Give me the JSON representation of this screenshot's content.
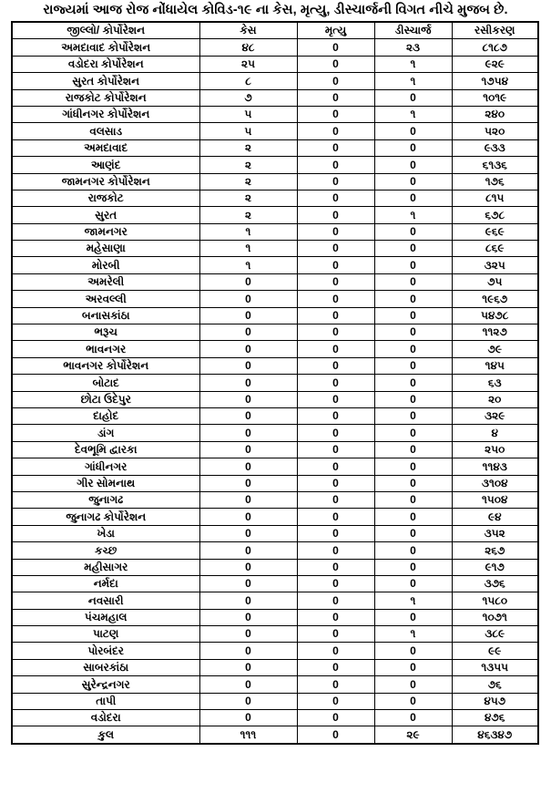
{
  "colors": {
    "text": "#000000",
    "background": "#ffffff",
    "border": "#000000"
  },
  "title": "રાજ્યમાં આજ રોજ નોંધાયેલ કોવિડ-૧૯ ના કેસ, મૃત્યુ, ડીસ્ચાર્જની વિગત નીચે મુજબ છે.",
  "table": {
    "headers": [
      "જીલ્લો/ કોર્પોરેશન",
      "કેસ",
      "મૃત્યુ",
      "ડીસ્ચાર્જ",
      "રસીકરણ"
    ],
    "rows": [
      {
        "name": "અમદાવાદ કોર્પોરેશન",
        "cases": "૪૮",
        "deaths": "0",
        "discharge": "૨૩",
        "vaccination": "૮૧૮૭"
      },
      {
        "name": "વડોદરા કોર્પોરેશન",
        "cases": "૨૫",
        "deaths": "0",
        "discharge": "૧",
        "vaccination": "૯૨૯"
      },
      {
        "name": "સુરત કોર્પોરેશન",
        "cases": "૮",
        "deaths": "0",
        "discharge": "૧",
        "vaccination": "૧૭૫૪"
      },
      {
        "name": "રાજકોટ કોર્પોરેશન",
        "cases": "૭",
        "deaths": "0",
        "discharge": "0",
        "vaccination": "૧૦૧૯"
      },
      {
        "name": "ગાંધીનગર કોર્પોરેશન",
        "cases": "૫",
        "deaths": "0",
        "discharge": "૧",
        "vaccination": "૨૪૦"
      },
      {
        "name": "વલસાડ",
        "cases": "૫",
        "deaths": "0",
        "discharge": "0",
        "vaccination": "૫૨૦"
      },
      {
        "name": "અમદાવાદ",
        "cases": "૨",
        "deaths": "0",
        "discharge": "0",
        "vaccination": "૯૩૩"
      },
      {
        "name": "આણંદ",
        "cases": "૨",
        "deaths": "0",
        "discharge": "0",
        "vaccination": "૬૧૩૬"
      },
      {
        "name": "જામનગર કોર્પોરેશન",
        "cases": "૨",
        "deaths": "0",
        "discharge": "0",
        "vaccination": "૧૭૬"
      },
      {
        "name": "રાજકોટ",
        "cases": "૨",
        "deaths": "0",
        "discharge": "0",
        "vaccination": "૮૧૫"
      },
      {
        "name": "સુરત",
        "cases": "૨",
        "deaths": "0",
        "discharge": "૧",
        "vaccination": "૬૭૮"
      },
      {
        "name": "જામનગર",
        "cases": "૧",
        "deaths": "0",
        "discharge": "0",
        "vaccination": "૯૬૯"
      },
      {
        "name": "મહેસાણા",
        "cases": "૧",
        "deaths": "0",
        "discharge": "0",
        "vaccination": "૮૬૯"
      },
      {
        "name": "મોરબી",
        "cases": "૧",
        "deaths": "0",
        "discharge": "0",
        "vaccination": "૩૨૫"
      },
      {
        "name": "અમરેલી",
        "cases": "0",
        "deaths": "0",
        "discharge": "0",
        "vaccination": "૭૫"
      },
      {
        "name": "અરવલ્લી",
        "cases": "0",
        "deaths": "0",
        "discharge": "0",
        "vaccination": "૧૯૬૭"
      },
      {
        "name": "બનાસકાંઠા",
        "cases": "0",
        "deaths": "0",
        "discharge": "0",
        "vaccination": "૫૪૭૮"
      },
      {
        "name": "ભરૂચ",
        "cases": "0",
        "deaths": "0",
        "discharge": "0",
        "vaccination": "૧૧૨૭"
      },
      {
        "name": "ભાવનગર",
        "cases": "0",
        "deaths": "0",
        "discharge": "0",
        "vaccination": "૭૯"
      },
      {
        "name": "ભાવનગર કોર્પોરેશન",
        "cases": "0",
        "deaths": "0",
        "discharge": "0",
        "vaccination": "૧૪૫"
      },
      {
        "name": "બોટાદ",
        "cases": "0",
        "deaths": "0",
        "discharge": "0",
        "vaccination": "૬૩"
      },
      {
        "name": "છોટા ઉદેપુર",
        "cases": "0",
        "deaths": "0",
        "discharge": "0",
        "vaccination": "૨૦"
      },
      {
        "name": "દાહોદ",
        "cases": "0",
        "deaths": "0",
        "discharge": "0",
        "vaccination": "૩૨૯"
      },
      {
        "name": "ડાંગ",
        "cases": "0",
        "deaths": "0",
        "discharge": "0",
        "vaccination": "૪"
      },
      {
        "name": "દેવભૂમિ દ્વારકા",
        "cases": "0",
        "deaths": "0",
        "discharge": "0",
        "vaccination": "૨૫૦"
      },
      {
        "name": "ગાંધીનગર",
        "cases": "0",
        "deaths": "0",
        "discharge": "0",
        "vaccination": "૧૧૪૩"
      },
      {
        "name": "ગીર સોમનાથ",
        "cases": "0",
        "deaths": "0",
        "discharge": "0",
        "vaccination": "૩૧૦૪"
      },
      {
        "name": "જુનાગઢ",
        "cases": "0",
        "deaths": "0",
        "discharge": "0",
        "vaccination": "૧૫૦૪"
      },
      {
        "name": "જુનાગઢ કોર્પોરેશન",
        "cases": "0",
        "deaths": "0",
        "discharge": "0",
        "vaccination": "૯૪"
      },
      {
        "name": "ખેડા",
        "cases": "0",
        "deaths": "0",
        "discharge": "0",
        "vaccination": "૩૫૨"
      },
      {
        "name": "કચ્છ",
        "cases": "0",
        "deaths": "0",
        "discharge": "0",
        "vaccination": "૨૬૭"
      },
      {
        "name": "મહીસાગર",
        "cases": "0",
        "deaths": "0",
        "discharge": "0",
        "vaccination": "૯૧૭"
      },
      {
        "name": "નર્મદા",
        "cases": "0",
        "deaths": "0",
        "discharge": "0",
        "vaccination": "૩૭૬"
      },
      {
        "name": "નવસારી",
        "cases": "0",
        "deaths": "0",
        "discharge": "૧",
        "vaccination": "૧૫૮૦"
      },
      {
        "name": "પંચમહાલ",
        "cases": "0",
        "deaths": "0",
        "discharge": "0",
        "vaccination": "૧૦૭૧"
      },
      {
        "name": "પાટણ",
        "cases": "0",
        "deaths": "0",
        "discharge": "૧",
        "vaccination": "૩૮૯"
      },
      {
        "name": "પોરબંદર",
        "cases": "0",
        "deaths": "0",
        "discharge": "0",
        "vaccination": "૯૯"
      },
      {
        "name": "સાબરકાંઠા",
        "cases": "0",
        "deaths": "0",
        "discharge": "0",
        "vaccination": "૧૩૫૫"
      },
      {
        "name": "સુરેન્દ્રનગર",
        "cases": "0",
        "deaths": "0",
        "discharge": "0",
        "vaccination": "૭૬"
      },
      {
        "name": "તાપી",
        "cases": "0",
        "deaths": "0",
        "discharge": "0",
        "vaccination": "૪૫૭"
      },
      {
        "name": "વડોદરા",
        "cases": "0",
        "deaths": "0",
        "discharge": "0",
        "vaccination": "૪૭૬"
      }
    ],
    "total_row": {
      "name": "કુલ",
      "cases": "૧૧૧",
      "deaths": "0",
      "discharge": "૨૯",
      "vaccination": "૪૬૩૪૭"
    }
  }
}
